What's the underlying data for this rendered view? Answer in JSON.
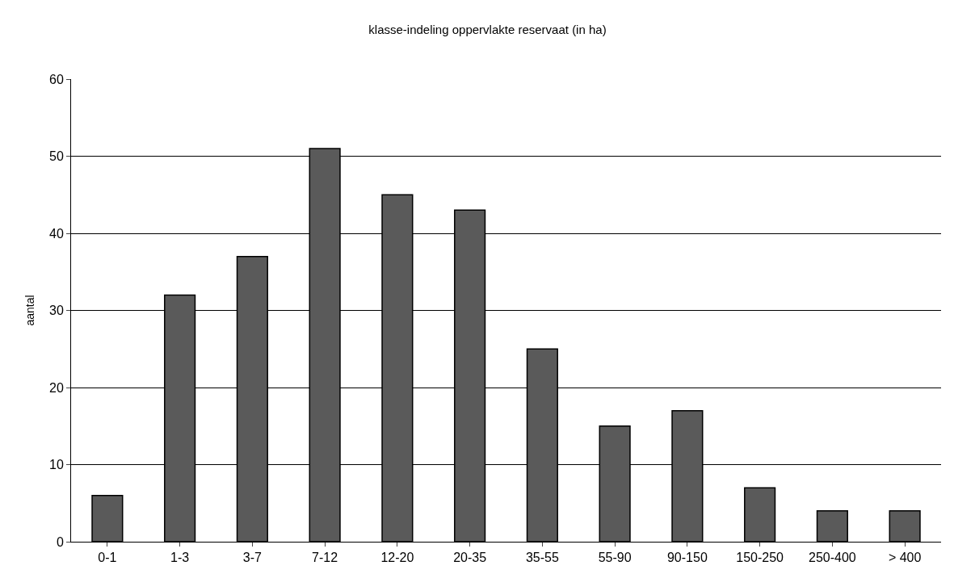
{
  "chart_data": {
    "type": "bar",
    "title": "klasse-indeling oppervlakte reservaat (in ha)",
    "ylabel": "aantal",
    "categories": [
      "0-1",
      "1-3",
      "3-7",
      "7-12",
      "12-20",
      "20-35",
      "35-55",
      "55-90",
      "90-150",
      "150-250",
      "250-400",
      "> 400"
    ],
    "values": [
      6,
      32,
      37,
      51,
      45,
      43,
      25,
      15,
      17,
      7,
      4,
      4
    ],
    "color": "#5a5a5a",
    "ylim": [
      0,
      60
    ],
    "yticks": [
      0,
      10,
      20,
      30,
      40,
      50,
      60
    ],
    "grid": "y"
  }
}
